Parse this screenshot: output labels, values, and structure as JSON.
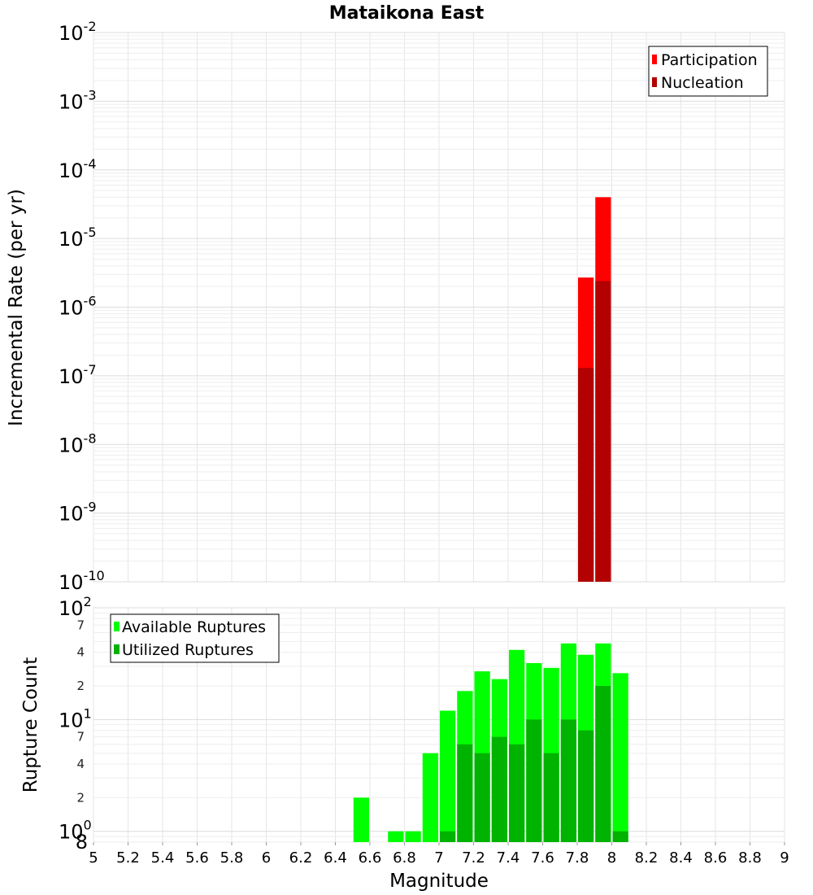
{
  "chart_data": [
    {
      "type": "bar",
      "title": "Mataikona East",
      "xlabel": "",
      "ylabel": "Incremental Rate (per yr)",
      "yscale": "log",
      "ylim": [
        1e-10,
        0.01
      ],
      "xlim": [
        5,
        9
      ],
      "grid": true,
      "legend_position": "top-right",
      "bar_width": 0.1,
      "x": [
        7.85,
        7.95
      ],
      "series": [
        {
          "name": "Participation",
          "color": "#ff0000",
          "values": [
            2.7e-06,
            4e-05
          ]
        },
        {
          "name": "Nucleation",
          "color": "#b30000",
          "values": [
            1.3e-07,
            2.4e-06
          ]
        }
      ],
      "y_tick_labels": [
        {
          "base": "10",
          "exp": "-2"
        },
        {
          "base": "10",
          "exp": "-3"
        },
        {
          "base": "10",
          "exp": "-4"
        },
        {
          "base": "10",
          "exp": "-5"
        },
        {
          "base": "10",
          "exp": "-6"
        },
        {
          "base": "10",
          "exp": "-7"
        },
        {
          "base": "10",
          "exp": "-8"
        },
        {
          "base": "10",
          "exp": "-9"
        },
        {
          "base": "10",
          "exp": "-10"
        }
      ]
    },
    {
      "type": "bar",
      "title": "",
      "xlabel": "Magnitude",
      "ylabel": "Rupture Count",
      "yscale": "log",
      "ylim": [
        0.8,
        100
      ],
      "xlim": [
        5,
        9
      ],
      "grid": true,
      "legend_position": "top-left",
      "bar_width": 0.1,
      "x": [
        6.55,
        6.75,
        6.85,
        6.95,
        7.05,
        7.15,
        7.25,
        7.35,
        7.45,
        7.55,
        7.65,
        7.75,
        7.85,
        7.95,
        8.05
      ],
      "series": [
        {
          "name": "Available Ruptures",
          "color": "#00ff00",
          "values": [
            2,
            1,
            1,
            5,
            12,
            18,
            27,
            23,
            42,
            32,
            29,
            48,
            38,
            48,
            26
          ]
        },
        {
          "name": "Utilized Ruptures",
          "color": "#00b300",
          "values": [
            0,
            0,
            0,
            0,
            1,
            6,
            5,
            7,
            6,
            10,
            5,
            10,
            8,
            20,
            1
          ]
        }
      ],
      "y_tick_labels": [
        {
          "base": "10",
          "exp": "2"
        },
        {
          "base": "10",
          "exp": "1"
        },
        {
          "base": "10",
          "exp": "0"
        }
      ],
      "y_bottom_label": "8",
      "y_minor_labels": [
        {
          "value": 70,
          "label": "7"
        },
        {
          "value": 40,
          "label": "4"
        },
        {
          "value": 20,
          "label": "2"
        },
        {
          "value": 7,
          "label": "7"
        },
        {
          "value": 4,
          "label": "4"
        },
        {
          "value": 2,
          "label": "2"
        }
      ],
      "x_ticks": [
        5,
        5.2,
        5.4,
        5.6,
        5.8,
        6,
        6.2,
        6.4,
        6.6,
        6.8,
        7,
        7.2,
        7.4,
        7.6,
        7.8,
        8,
        8.2,
        8.4,
        8.6,
        8.8,
        9
      ],
      "x_tick_labels": [
        "5",
        "5.2",
        "5.4",
        "5.6",
        "5.8",
        "6",
        "6.2",
        "6.4",
        "6.6",
        "6.8",
        "7",
        "7.2",
        "7.4",
        "7.6",
        "7.8",
        "8",
        "8.2",
        "8.4",
        "8.6",
        "8.8",
        "9"
      ]
    }
  ]
}
